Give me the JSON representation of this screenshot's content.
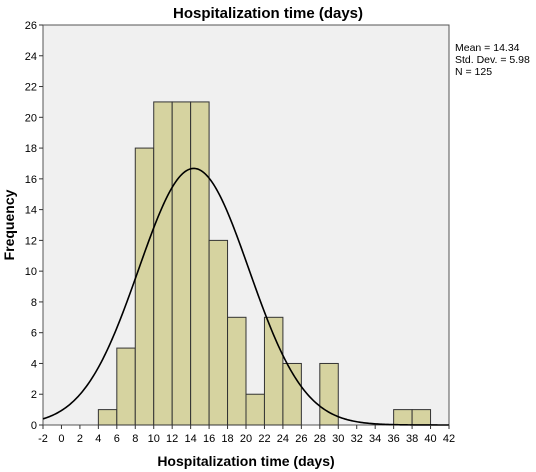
{
  "chart_data": {
    "type": "bar",
    "title": "Hospitalization time (days)",
    "xlabel": "Hospitalization time (days)",
    "ylabel": "Frequency",
    "xlim": [
      -2,
      42
    ],
    "ylim": [
      0,
      26
    ],
    "x_ticks": [
      "-2",
      "0",
      "2",
      "4",
      "6",
      "8",
      "10",
      "12",
      "14",
      "16",
      "18",
      "20",
      "22",
      "24",
      "26",
      "28",
      "30",
      "32",
      "34",
      "36",
      "38",
      "40",
      "42"
    ],
    "y_ticks": [
      "0",
      "2",
      "4",
      "6",
      "8",
      "10",
      "12",
      "14",
      "16",
      "18",
      "20",
      "22",
      "24",
      "26"
    ],
    "bin_width": 2,
    "bins": [
      {
        "x0": 4,
        "x1": 6,
        "count": 1
      },
      {
        "x0": 6,
        "x1": 8,
        "count": 5
      },
      {
        "x0": 8,
        "x1": 10,
        "count": 18
      },
      {
        "x0": 10,
        "x1": 12,
        "count": 21
      },
      {
        "x0": 12,
        "x1": 14,
        "count": 21
      },
      {
        "x0": 14,
        "x1": 16,
        "count": 21
      },
      {
        "x0": 16,
        "x1": 18,
        "count": 12
      },
      {
        "x0": 18,
        "x1": 20,
        "count": 7
      },
      {
        "x0": 20,
        "x1": 22,
        "count": 2
      },
      {
        "x0": 22,
        "x1": 24,
        "count": 7
      },
      {
        "x0": 24,
        "x1": 26,
        "count": 4
      },
      {
        "x0": 28,
        "x1": 30,
        "count": 4
      },
      {
        "x0": 36,
        "x1": 38,
        "count": 1
      },
      {
        "x0": 38,
        "x1": 40,
        "count": 1
      }
    ],
    "normal_curve": {
      "mean": 14.34,
      "std_dev": 5.98,
      "n": 125
    },
    "stats": {
      "mean": "Mean = 14.34",
      "std_dev": "Std. Dev. = 5.98",
      "n": "N = 125"
    },
    "colors": {
      "bar_fill": "#d6d3a0",
      "bar_stroke": "#333333",
      "plot_background": "#f0f0f0",
      "curve": "#000000"
    },
    "grid": false
  }
}
